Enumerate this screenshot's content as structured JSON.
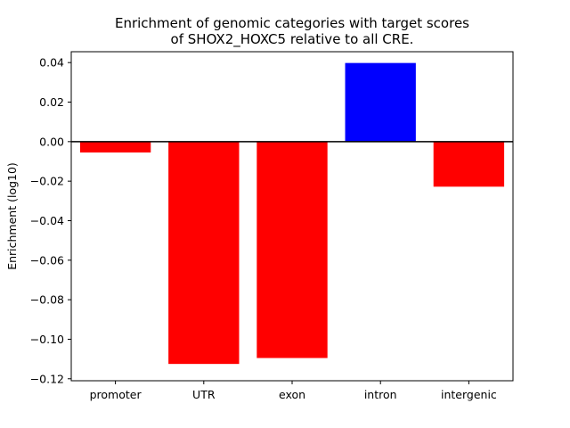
{
  "chart_data": {
    "type": "bar",
    "title_lines": [
      "Enrichment of genomic categories with target scores",
      "of SHOX2_HOXC5 relative to all CRE."
    ],
    "xlabel": "",
    "ylabel": "Enrichment (log10)",
    "categories": [
      "promoter",
      "UTR",
      "exon",
      "intron",
      "intergenic"
    ],
    "values": [
      -0.0055,
      -0.1125,
      -0.1095,
      0.0398,
      -0.0228
    ],
    "bar_colors": [
      "#ff0000",
      "#ff0000",
      "#ff0000",
      "#0000ff",
      "#ff0000"
    ],
    "ylim": [
      -0.121,
      0.0455
    ],
    "yticks": [
      0.04,
      0.02,
      0.0,
      -0.02,
      -0.04,
      -0.06,
      -0.08,
      -0.1,
      -0.12
    ],
    "ytick_labels": [
      "0.04",
      "0.02",
      "0.00",
      "−0.02",
      "−0.04",
      "−0.06",
      "−0.08",
      "−0.10",
      "−0.12"
    ],
    "grid": false,
    "zero_line": true
  }
}
